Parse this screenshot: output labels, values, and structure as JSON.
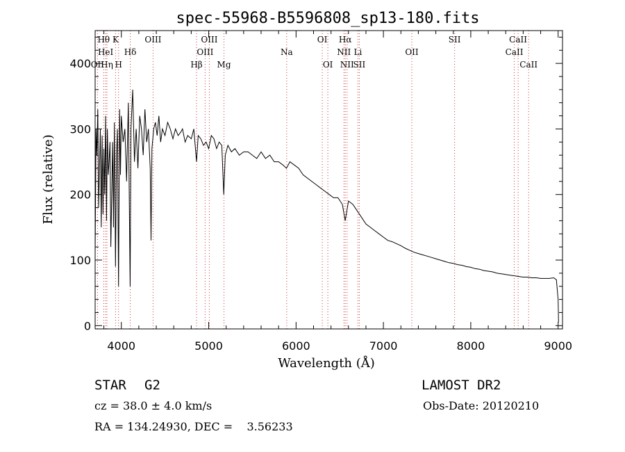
{
  "chart_data": {
    "type": "line",
    "title": "spec-55968-B5596808_sp13-180.fits",
    "xlabel": "Wavelength (Å)",
    "ylabel": "Flux (relative)",
    "xlim": [
      3700,
      9050
    ],
    "ylim": [
      -5,
      450
    ],
    "xticks": [
      4000,
      5000,
      6000,
      7000,
      8000,
      9000
    ],
    "yticks": [
      0,
      100,
      200,
      300,
      400
    ],
    "grid": false,
    "series": [
      {
        "x": [
          3700,
          3710,
          3720,
          3730,
          3740,
          3750,
          3760,
          3770,
          3780,
          3790,
          3800,
          3810,
          3820,
          3830,
          3840,
          3850,
          3860,
          3870,
          3880,
          3890,
          3900,
          3910,
          3920,
          3933,
          3945,
          3955,
          3968,
          3980,
          3990,
          4000,
          4020,
          4040,
          4060,
          4080,
          4101,
          4110,
          4130,
          4150,
          4170,
          4190,
          4210,
          4230,
          4250,
          4270,
          4290,
          4310,
          4330,
          4340,
          4350,
          4370,
          4390,
          4410,
          4430,
          4450,
          4470,
          4500,
          4530,
          4560,
          4590,
          4620,
          4650,
          4680,
          4700,
          4730,
          4760,
          4800,
          4830,
          4861,
          4880,
          4910,
          4940,
          4970,
          5000,
          5030,
          5060,
          5090,
          5120,
          5150,
          5172,
          5190,
          5220,
          5260,
          5300,
          5350,
          5400,
          5450,
          5500,
          5550,
          5600,
          5650,
          5700,
          5750,
          5800,
          5850,
          5890,
          5930,
          5980,
          6030,
          6080,
          6130,
          6180,
          6230,
          6280,
          6330,
          6380,
          6430,
          6480,
          6530,
          6563,
          6600,
          6650,
          6700,
          6750,
          6800,
          6850,
          6900,
          6950,
          7000,
          7050,
          7100,
          7150,
          7200,
          7250,
          7300,
          7350,
          7400,
          7450,
          7500,
          7550,
          7600,
          7650,
          7700,
          7750,
          7800,
          7850,
          7900,
          7950,
          8000,
          8050,
          8100,
          8150,
          8200,
          8250,
          8300,
          8350,
          8400,
          8450,
          8500,
          8550,
          8600,
          8650,
          8700,
          8750,
          8800,
          8850,
          8900,
          8950,
          8980,
          9000,
          9005
        ],
        "values": [
          110,
          300,
          260,
          330,
          180,
          240,
          300,
          150,
          290,
          170,
          270,
          200,
          320,
          160,
          300,
          230,
          250,
          280,
          120,
          200,
          280,
          150,
          310,
          90,
          260,
          300,
          60,
          330,
          230,
          320,
          280,
          300,
          220,
          340,
          60,
          300,
          360,
          250,
          300,
          240,
          320,
          300,
          260,
          330,
          280,
          300,
          240,
          130,
          270,
          300,
          310,
          290,
          320,
          280,
          300,
          290,
          310,
          300,
          285,
          300,
          290,
          295,
          300,
          280,
          290,
          285,
          300,
          250,
          290,
          285,
          275,
          280,
          270,
          290,
          285,
          270,
          280,
          275,
          200,
          260,
          275,
          265,
          270,
          260,
          265,
          265,
          260,
          255,
          265,
          255,
          260,
          250,
          250,
          245,
          240,
          250,
          245,
          240,
          230,
          225,
          220,
          215,
          210,
          205,
          200,
          195,
          195,
          185,
          160,
          190,
          185,
          175,
          165,
          155,
          150,
          145,
          140,
          135,
          130,
          128,
          125,
          122,
          118,
          115,
          112,
          110,
          108,
          106,
          104,
          102,
          100,
          98,
          96,
          95,
          93,
          92,
          90,
          89,
          87,
          86,
          84,
          83,
          82,
          80,
          79,
          78,
          77,
          76,
          75,
          74,
          74,
          73,
          73,
          72,
          72,
          72,
          73,
          70,
          40,
          5
        ]
      }
    ],
    "lines": [
      {
        "label": "Hθ",
        "x": 3798,
        "row": 1
      },
      {
        "label": "OII",
        "x": 3727,
        "row": 3
      },
      {
        "label": "HeI",
        "x": 3820,
        "row": 2
      },
      {
        "label": "Hη",
        "x": 3835,
        "row": 3
      },
      {
        "label": "H",
        "x": 3968,
        "row": 3
      },
      {
        "label": "K",
        "x": 3934,
        "row": 1
      },
      {
        "label": "Hδ",
        "x": 4102,
        "row": 2
      },
      {
        "label": "OIII",
        "x": 4363,
        "row": 1
      },
      {
        "label": "Hβ",
        "x": 4861,
        "row": 3
      },
      {
        "label": "OIII",
        "x": 4959,
        "row": 2
      },
      {
        "label": "OIII",
        "x": 5007,
        "row": 1
      },
      {
        "label": "Mg",
        "x": 5175,
        "row": 3
      },
      {
        "label": "Na",
        "x": 5893,
        "row": 2
      },
      {
        "label": "OI",
        "x": 6300,
        "row": 1
      },
      {
        "label": "OI",
        "x": 6364,
        "row": 3
      },
      {
        "label": "Hα",
        "x": 6563,
        "row": 1
      },
      {
        "label": "NII",
        "x": 6548,
        "row": 2
      },
      {
        "label": "NII",
        "x": 6584,
        "row": 3
      },
      {
        "label": "Li",
        "x": 6708,
        "row": 2
      },
      {
        "label": "SII",
        "x": 6724,
        "row": 3
      },
      {
        "label": "OII",
        "x": 7325,
        "row": 2
      },
      {
        "label": "SII",
        "x": 7815,
        "row": 1
      },
      {
        "label": "CaII",
        "x": 8498,
        "row": 2
      },
      {
        "label": "CaII",
        "x": 8542,
        "row": 1
      },
      {
        "label": "CaII",
        "x": 8662,
        "row": 3
      }
    ]
  },
  "info": {
    "class": "STAR",
    "subclass": "G2",
    "survey": "LAMOST DR2",
    "cz": "cz = 38.0 ± 4.0 km/s",
    "obsdate": "Obs-Date: 20120210",
    "radec": "RA = 134.24930, DEC =    3.56233"
  }
}
